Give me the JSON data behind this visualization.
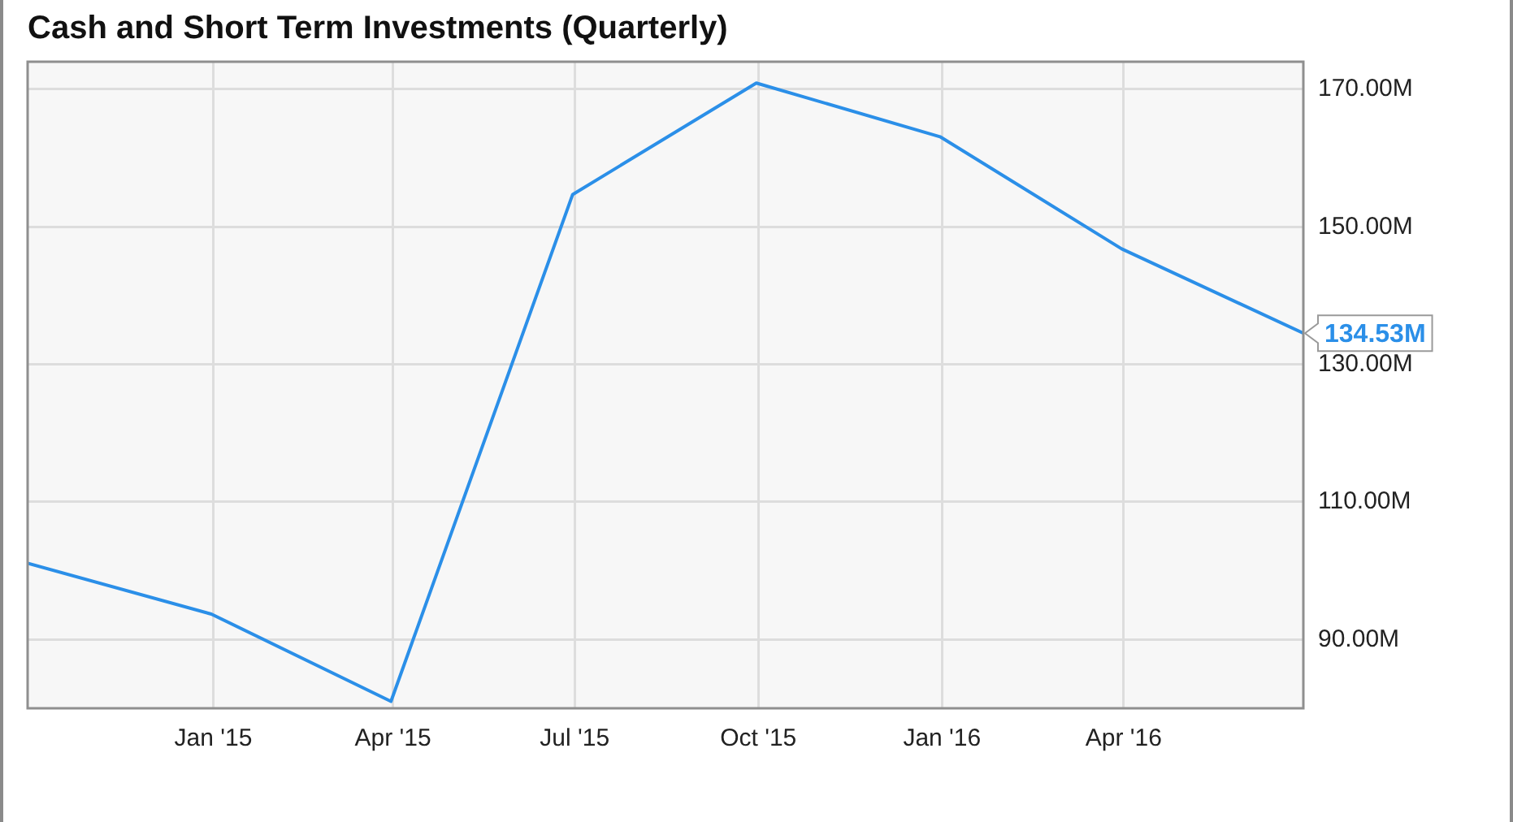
{
  "chart_data": {
    "type": "line",
    "title": "Cash and Short Term Investments (Quarterly)",
    "x": [
      "2014-09-30",
      "2014-12-31",
      "2015-03-31",
      "2015-06-30",
      "2015-09-30",
      "2015-12-31",
      "2016-03-31",
      "2016-06-30"
    ],
    "series": [
      {
        "color": "#2b8fe8",
        "values": [
          101.1,
          93.7,
          81.0,
          154.7,
          170.9,
          163.1,
          146.8,
          134.53
        ],
        "value_labels": [
          null,
          null,
          null,
          null,
          null,
          null,
          null,
          "134.53M"
        ]
      }
    ],
    "xlim": [
      "2014-09-30",
      "2016-06-30"
    ],
    "xticks": [
      {
        "value": "2015-01-01",
        "label": "Jan '15"
      },
      {
        "value": "2015-04-01",
        "label": "Apr '15"
      },
      {
        "value": "2015-07-01",
        "label": "Jul '15"
      },
      {
        "value": "2015-10-01",
        "label": "Oct '15"
      },
      {
        "value": "2016-01-01",
        "label": "Jan '16"
      },
      {
        "value": "2016-04-01",
        "label": "Apr '16"
      }
    ],
    "ylim": [
      80,
      174
    ],
    "yticks": [
      {
        "value": 90,
        "label": "90.00M"
      },
      {
        "value": 110,
        "label": "110.00M"
      },
      {
        "value": 130,
        "label": "130.00M"
      },
      {
        "value": 150,
        "label": "150.00M"
      },
      {
        "value": 170,
        "label": "170.00M"
      }
    ],
    "grid": true,
    "marker": "none",
    "line_style": "solid"
  }
}
